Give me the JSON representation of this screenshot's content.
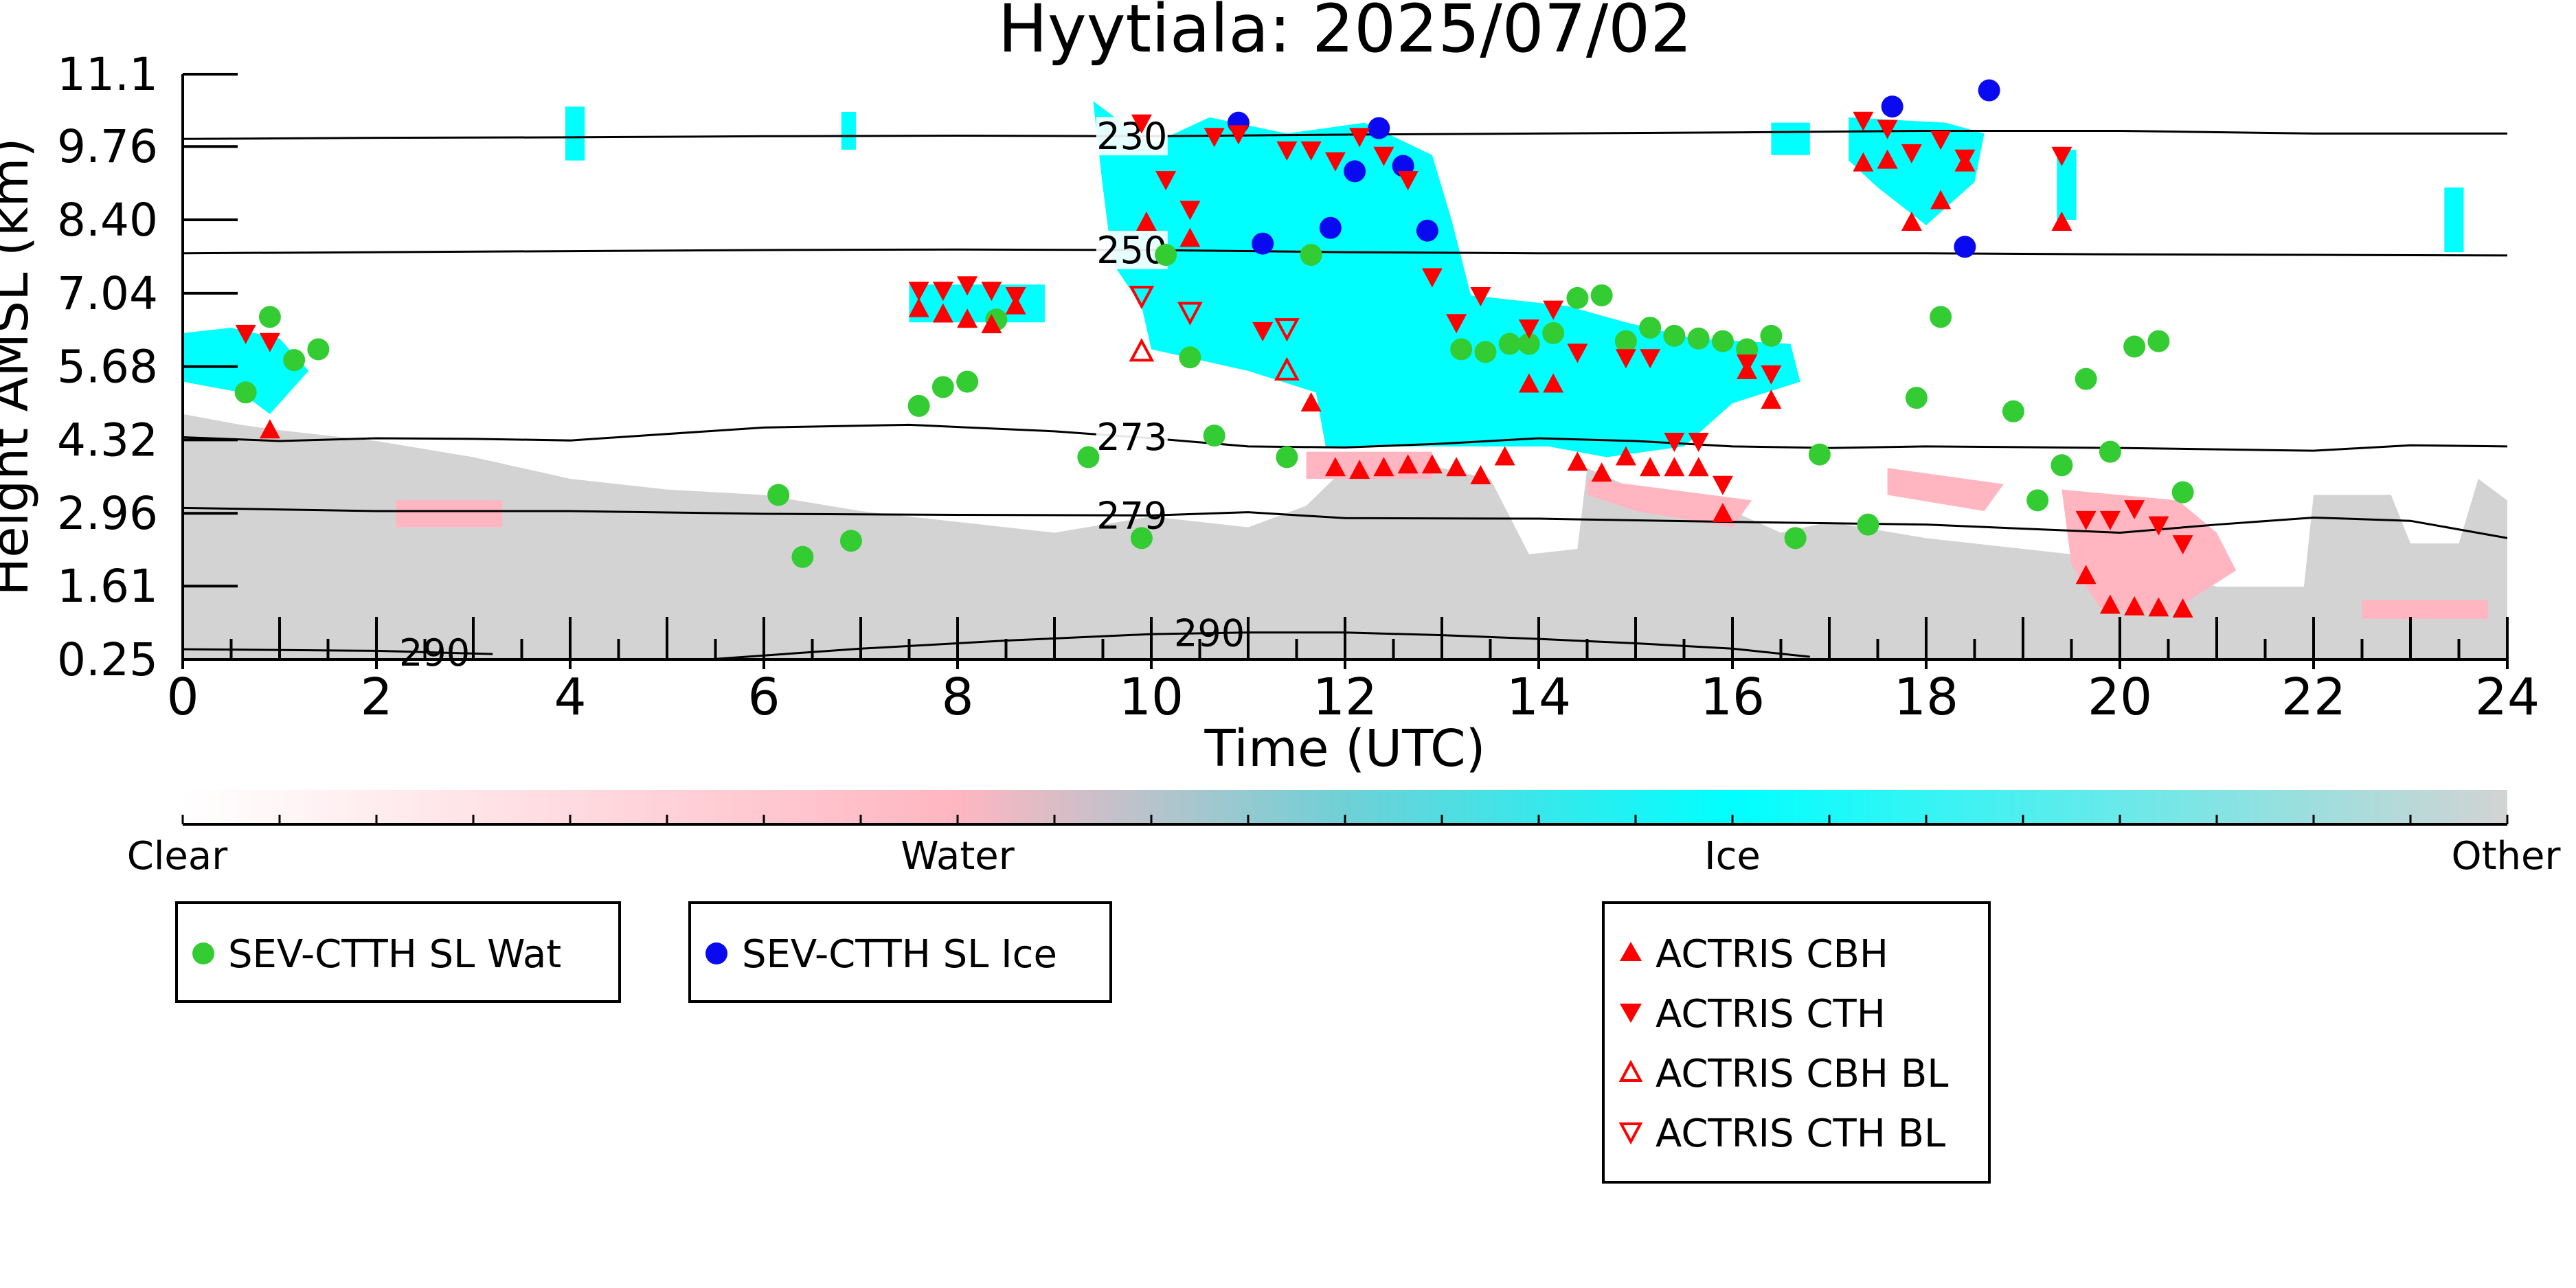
{
  "chart_data": {
    "type": "scatter",
    "title": "Hyytiala: 2025/07/02",
    "xlabel": "Time (UTC)",
    "ylabel": "Height AMSL (km)",
    "xlim": [
      0,
      24
    ],
    "ylim": [
      0.25,
      11.1
    ],
    "x_ticks": [
      "0",
      "2",
      "4",
      "6",
      "8",
      "10",
      "12",
      "14",
      "16",
      "18",
      "20",
      "22",
      "24"
    ],
    "y_ticks": [
      "0.25",
      "1.61",
      "2.96",
      "4.32",
      "5.68",
      "7.04",
      "8.40",
      "9.76",
      "11.1"
    ],
    "grid": false,
    "background_field": "cloud phase classification (Clear / Water / Ice / Other)",
    "colorbar": {
      "labels": [
        "Clear",
        "Water",
        "Ice",
        "Other"
      ],
      "colors": [
        "#ffffff",
        "#ffb6c1",
        "#00ffff",
        "#d3d3d3"
      ]
    },
    "contours": [
      {
        "label": "230",
        "x": [
          0,
          2,
          4,
          6,
          8,
          10,
          12,
          14,
          16,
          18,
          20,
          22,
          24
        ],
        "y": [
          9.9,
          9.92,
          9.93,
          9.95,
          9.96,
          9.95,
          9.98,
          10.0,
          10.02,
          10.05,
          10.05,
          10.0,
          10.0
        ]
      },
      {
        "label": "250",
        "x": [
          0,
          2,
          4,
          6,
          8,
          10,
          12,
          14,
          16,
          18,
          20,
          22,
          24
        ],
        "y": [
          7.78,
          7.8,
          7.82,
          7.84,
          7.85,
          7.84,
          7.8,
          7.78,
          7.78,
          7.78,
          7.76,
          7.75,
          7.74
        ]
      },
      {
        "label": "273",
        "x": [
          0,
          1,
          2,
          3,
          4,
          6,
          7.5,
          9,
          10,
          11,
          12,
          13,
          14,
          15,
          16,
          17,
          18,
          20,
          22,
          23,
          24
        ],
        "y": [
          4.37,
          4.3,
          4.35,
          4.34,
          4.31,
          4.55,
          4.6,
          4.48,
          4.35,
          4.2,
          4.18,
          4.25,
          4.35,
          4.3,
          4.2,
          4.17,
          4.2,
          4.17,
          4.12,
          4.22,
          4.2
        ]
      },
      {
        "label": "279",
        "x": [
          0,
          2,
          4,
          6,
          8,
          10,
          11,
          12,
          14,
          16,
          18,
          20,
          21,
          22,
          23,
          24
        ],
        "y": [
          3.06,
          3.0,
          3.0,
          2.95,
          2.93,
          2.92,
          2.98,
          2.87,
          2.86,
          2.8,
          2.75,
          2.6,
          2.75,
          2.88,
          2.82,
          2.5
        ]
      },
      {
        "label": "290",
        "x": [
          0,
          2,
          3.2
        ],
        "y": [
          0.44,
          0.41,
          0.35
        ]
      },
      {
        "label": "290",
        "x": [
          5.5,
          7,
          8.5,
          10,
          11,
          12,
          13,
          14,
          15,
          16,
          16.8
        ],
        "y": [
          0.26,
          0.45,
          0.6,
          0.72,
          0.75,
          0.75,
          0.7,
          0.63,
          0.55,
          0.45,
          0.3
        ]
      }
    ],
    "series": [
      {
        "name": "SEV-CTTH SL Wat",
        "marker": "circle",
        "color": "#33cc33",
        "x": [
          0.65,
          0.9,
          1.15,
          1.4,
          6.15,
          6.4,
          6.9,
          7.6,
          7.85,
          8.1,
          8.4,
          9.35,
          9.9,
          10.15,
          10.4,
          10.65,
          11.4,
          11.65,
          13.2,
          13.45,
          13.7,
          13.9,
          14.15,
          14.4,
          14.65,
          14.9,
          15.15,
          15.4,
          15.65,
          15.9,
          16.15,
          16.4,
          16.65,
          16.9,
          17.4,
          17.9,
          18.15,
          18.9,
          19.15,
          19.4,
          19.65,
          19.9,
          20.15,
          20.4,
          20.65
        ],
        "y": [
          5.2,
          6.6,
          5.8,
          6.0,
          3.3,
          2.15,
          2.45,
          4.95,
          5.3,
          5.4,
          6.55,
          4.0,
          2.5,
          7.75,
          5.85,
          4.4,
          4.0,
          7.75,
          6.0,
          5.95,
          6.1,
          6.1,
          6.3,
          6.95,
          7.0,
          6.15,
          6.4,
          6.25,
          6.2,
          6.15,
          6.0,
          6.25,
          2.5,
          4.05,
          2.75,
          5.1,
          6.6,
          4.85,
          3.2,
          3.85,
          5.45,
          4.1,
          6.05,
          6.15,
          3.35
        ]
      },
      {
        "name": "SEV-CTTH SL Ice",
        "marker": "circle",
        "color": "#0a0af0",
        "x": [
          10.9,
          11.15,
          11.85,
          12.1,
          12.35,
          12.6,
          12.85,
          17.65,
          18.4,
          18.65
        ],
        "y": [
          10.2,
          7.96,
          8.25,
          9.3,
          10.1,
          9.4,
          8.2,
          10.5,
          7.9,
          10.8
        ]
      },
      {
        "name": "ACTRIS CBH",
        "marker": "triangle-up",
        "color": "#ff0000",
        "filled": true,
        "x": [
          0.9,
          7.6,
          7.85,
          8.1,
          8.35,
          8.6,
          9.95,
          10.4,
          11.65,
          11.9,
          12.15,
          12.4,
          12.65,
          12.9,
          13.15,
          13.4,
          13.65,
          13.9,
          14.15,
          14.4,
          14.65,
          14.9,
          15.15,
          15.4,
          15.65,
          15.9,
          16.15,
          16.4,
          17.35,
          17.6,
          17.85,
          18.15,
          18.4,
          19.4,
          19.65,
          19.9,
          20.15,
          20.4,
          20.65
        ],
        "y": [
          4.5,
          6.75,
          6.65,
          6.55,
          6.45,
          6.8,
          8.35,
          8.05,
          5.0,
          3.8,
          3.75,
          3.8,
          3.85,
          3.85,
          3.8,
          3.65,
          4.0,
          5.35,
          5.35,
          3.9,
          3.7,
          4.0,
          3.8,
          3.8,
          3.8,
          2.95,
          5.6,
          5.05,
          9.45,
          9.5,
          8.35,
          8.75,
          9.45,
          8.35,
          1.8,
          1.25,
          1.22,
          1.2,
          1.18
        ]
      },
      {
        "name": "ACTRIS CTH",
        "marker": "triangle-down",
        "color": "#ff0000",
        "filled": true,
        "x": [
          0.65,
          0.9,
          7.6,
          7.85,
          8.1,
          8.35,
          8.6,
          9.9,
          10.15,
          10.4,
          10.65,
          10.9,
          11.15,
          11.4,
          11.65,
          11.9,
          12.15,
          12.4,
          12.65,
          12.9,
          13.15,
          13.4,
          13.9,
          14.15,
          14.4,
          14.9,
          15.15,
          15.4,
          15.65,
          15.9,
          16.15,
          16.4,
          17.35,
          17.6,
          17.85,
          18.15,
          18.4,
          19.4,
          19.65,
          19.9,
          20.15,
          20.4,
          20.65
        ],
        "y": [
          6.3,
          6.15,
          7.1,
          7.1,
          7.2,
          7.1,
          7.0,
          10.2,
          9.15,
          8.6,
          9.95,
          10.0,
          6.35,
          9.7,
          9.7,
          9.5,
          9.95,
          9.6,
          9.15,
          7.35,
          6.5,
          7.0,
          6.4,
          6.75,
          5.95,
          5.85,
          5.85,
          4.3,
          4.3,
          3.5,
          5.75,
          5.55,
          10.25,
          10.1,
          9.65,
          9.9,
          9.55,
          9.6,
          2.85,
          2.85,
          3.05,
          2.75,
          2.4
        ]
      },
      {
        "name": "ACTRIS CBH BL",
        "marker": "triangle-up",
        "color": "#ff0000",
        "filled": false,
        "x": [
          9.9,
          11.4
        ],
        "y": [
          5.95,
          5.6
        ]
      },
      {
        "name": "ACTRIS CTH BL",
        "marker": "triangle-down",
        "color": "#ff0000",
        "filled": false,
        "x": [
          9.9,
          10.4,
          11.4
        ],
        "y": [
          7.0,
          6.7,
          6.4
        ]
      }
    ]
  },
  "legends": {
    "sev": [
      {
        "label": "SEV-CTTH SL Wat",
        "color": "#33cc33",
        "marker": "circle"
      },
      {
        "label": "SEV-CTTH SL Ice",
        "color": "#0a0af0",
        "marker": "circle"
      }
    ],
    "actris": [
      {
        "label": "ACTRIS CBH",
        "color": "#ff0000",
        "marker": "triangle-up-filled"
      },
      {
        "label": "ACTRIS CTH",
        "color": "#ff0000",
        "marker": "triangle-down-filled"
      },
      {
        "label": "ACTRIS CBH BL",
        "color": "#ff0000",
        "marker": "triangle-up-open"
      },
      {
        "label": "ACTRIS CTH BL",
        "color": "#ff0000",
        "marker": "triangle-down-open"
      }
    ]
  }
}
